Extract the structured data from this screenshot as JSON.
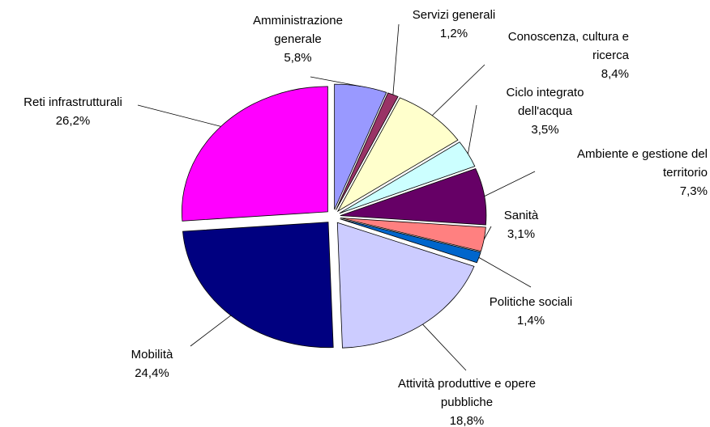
{
  "chart_data": {
    "type": "pie",
    "categories": [
      "Amministrazione generale",
      "Servizi generali",
      "Conoscenza, cultura e ricerca",
      "Ciclo integrato dell'acqua",
      "Ambiente e gestione del territorio",
      "Sanità",
      "Politiche sociali",
      "Attività produttive e opere pubbliche",
      "Mobilità",
      "Reti infrastrutturali"
    ],
    "values": [
      5.8,
      1.2,
      8.4,
      3.5,
      7.3,
      3.1,
      1.4,
      18.8,
      24.4,
      26.2
    ],
    "value_labels": [
      "5,8%",
      "1,2%",
      "8,4%",
      "3,5%",
      "7,3%",
      "3,1%",
      "1,4%",
      "18,8%",
      "24,4%",
      "26,2%"
    ],
    "colors": [
      "#9999ff",
      "#993366",
      "#ffffcc",
      "#ccffff",
      "#660066",
      "#ff8080",
      "#0066cc",
      "#ccccff",
      "#000080",
      "#ff00ff"
    ]
  }
}
